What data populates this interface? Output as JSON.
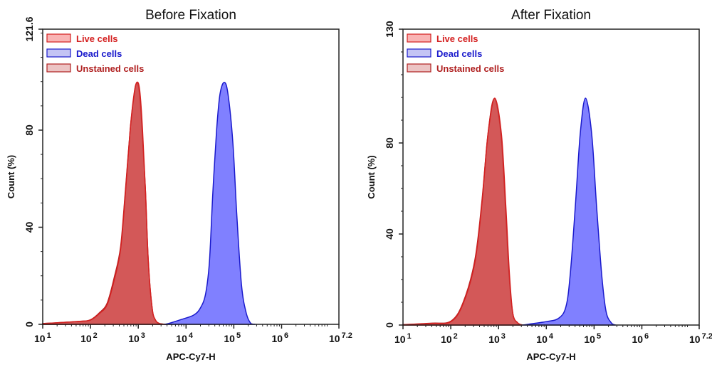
{
  "chart_data": [
    {
      "type": "area",
      "title": "Before Fixation",
      "xlabel": "APC-Cy7-H",
      "ylabel": "Count  (%)",
      "x_scale": "log10",
      "xlim_exponent": [
        1,
        7.2
      ],
      "x_tick_exponents": [
        "1",
        "2",
        "3",
        "4",
        "5",
        "6",
        "7.2"
      ],
      "ylim": [
        0,
        121.6
      ],
      "y_ticks": [
        "0",
        "40",
        "80",
        "121.6"
      ],
      "grid": false,
      "legend_position": "top-left",
      "series": [
        {
          "name": "Unstained cells",
          "color": "#b02020",
          "fill": "#e8c4c4",
          "log_x": [
            1,
            1.75,
            2.0,
            2.2,
            2.35,
            2.5,
            2.63,
            2.73,
            2.83,
            2.91,
            2.96,
            3.02,
            3.08,
            3.15,
            3.21,
            3.29,
            3.36,
            3.45,
            3.6
          ],
          "y": [
            0.3,
            1.2,
            1.9,
            5,
            8.8,
            19.5,
            32,
            55,
            80,
            94,
            99.2,
            96,
            80,
            55,
            26,
            6.7,
            1.8,
            0.3,
            0
          ]
        },
        {
          "name": "Live cells",
          "color": "#d42020",
          "fill": "#cc4040",
          "log_x": [
            1,
            1.75,
            2.0,
            2.2,
            2.35,
            2.5,
            2.63,
            2.73,
            2.83,
            2.91,
            2.97,
            3.03,
            3.09,
            3.15,
            3.21,
            3.29,
            3.36,
            3.45,
            3.6
          ],
          "y": [
            0.3,
            1.2,
            1.8,
            4.7,
            8.2,
            18.5,
            31,
            54,
            80,
            94.7,
            99.7,
            96.5,
            80,
            55,
            26,
            6.7,
            1.8,
            0.3,
            0
          ]
        },
        {
          "name": "Dead cells",
          "color": "#1a1acc",
          "fill": "#6a6aff",
          "log_x": [
            3.55,
            3.66,
            3.9,
            4.16,
            4.3,
            4.41,
            4.49,
            4.56,
            4.64,
            4.71,
            4.8,
            4.88,
            4.98,
            5.06,
            5.16,
            5.26,
            5.36,
            5.45
          ],
          "y": [
            0,
            0.5,
            2,
            3.8,
            6.7,
            12.6,
            26,
            54,
            80,
            94.7,
            99.7,
            94.7,
            75,
            46,
            16.4,
            4.7,
            0.3,
            0
          ]
        }
      ]
    },
    {
      "type": "area",
      "title": "After Fixation",
      "xlabel": "APC-Cy7-H",
      "ylabel": "Count  (%)",
      "x_scale": "log10",
      "xlim_exponent": [
        1,
        7.2
      ],
      "x_tick_exponents": [
        "1",
        "2",
        "3",
        "4",
        "5",
        "6",
        "7.2"
      ],
      "ylim": [
        0,
        130
      ],
      "y_ticks": [
        "0",
        "40",
        "80",
        "130"
      ],
      "grid": false,
      "legend_position": "top-left",
      "series": [
        {
          "name": "Unstained cells",
          "color": "#b02020",
          "fill": "#e8c4c4",
          "log_x": [
            1,
            1.6,
            2.0,
            2.25,
            2.5,
            2.65,
            2.78,
            2.91,
            3.05,
            3.14,
            3.22,
            3.3,
            3.4,
            3.5
          ],
          "y": [
            0.2,
            0.8,
            1.7,
            9.5,
            28,
            54,
            84,
            99.5,
            84,
            53,
            22,
            5,
            1,
            0
          ]
        },
        {
          "name": "Live cells",
          "color": "#d42020",
          "fill": "#cc4040",
          "log_x": [
            1,
            1.6,
            2.0,
            2.25,
            2.5,
            2.65,
            2.78,
            2.92,
            3.06,
            3.15,
            3.23,
            3.3,
            3.4,
            3.5
          ],
          "y": [
            0.2,
            0.7,
            1.5,
            9,
            27,
            53,
            84,
            99.7,
            84,
            53,
            22,
            5,
            1,
            0
          ]
        },
        {
          "name": "Dead cells",
          "color": "#1a1acc",
          "fill": "#6a6aff",
          "log_x": [
            3.5,
            4.0,
            4.26,
            4.41,
            4.5,
            4.61,
            4.71,
            4.82,
            4.95,
            5.05,
            5.16,
            5.25,
            5.36,
            5.45
          ],
          "y": [
            0,
            1.5,
            3,
            8,
            22,
            53,
            84,
            99.7,
            84,
            53,
            22,
            6,
            1,
            0
          ]
        }
      ]
    }
  ]
}
